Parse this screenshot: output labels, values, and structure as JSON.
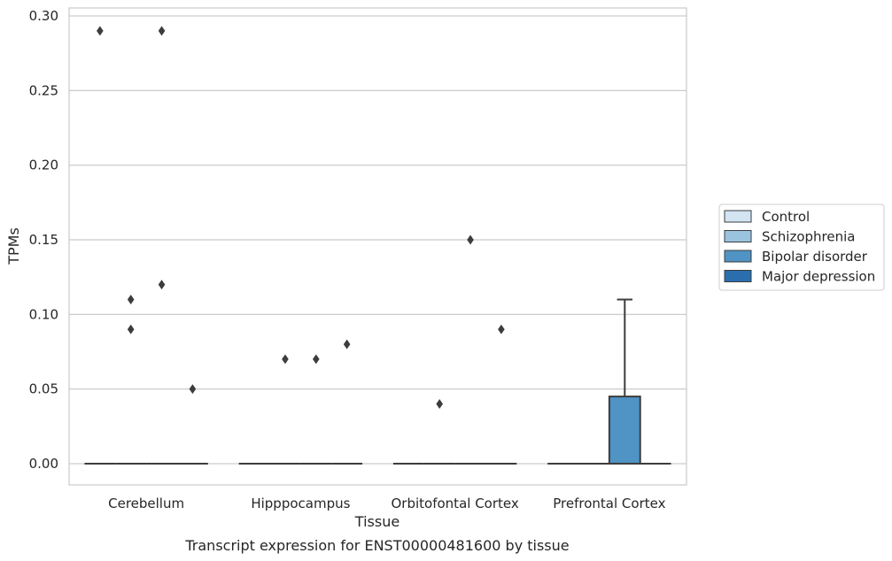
{
  "chart_data": {
    "type": "box",
    "title": "",
    "caption": "Transcript expression for ENST00000481600 by tissue",
    "xlabel": "Tissue",
    "ylabel": "TPMs",
    "ylim": [
      -0.014,
      0.305
    ],
    "yticks": [
      0.0,
      0.05,
      0.1,
      0.15,
      0.2,
      0.25,
      0.3
    ],
    "ytick_labels": [
      "0.00",
      "0.05",
      "0.10",
      "0.15",
      "0.20",
      "0.25",
      "0.30"
    ],
    "grid": true,
    "legend_position": "center-right",
    "categories": [
      "Cerebellum",
      "Hipppocampus",
      "Orbitofontal Cortex",
      "Prefrontal Cortex"
    ],
    "series": [
      {
        "name": "Control",
        "color": "#d3e4f3",
        "boxes": [
          {
            "q1": 0,
            "median": 0,
            "q3": 0,
            "whisker_low": 0,
            "whisker_high": 0,
            "outliers": [
              0.29
            ]
          },
          {
            "q1": 0,
            "median": 0,
            "q3": 0,
            "whisker_low": 0,
            "whisker_high": 0,
            "outliers": []
          },
          {
            "q1": 0,
            "median": 0,
            "q3": 0,
            "whisker_low": 0,
            "whisker_high": 0,
            "outliers": []
          },
          {
            "q1": 0,
            "median": 0,
            "q3": 0,
            "whisker_low": 0,
            "whisker_high": 0,
            "outliers": []
          }
        ]
      },
      {
        "name": "Schizophrenia",
        "color": "#9ac3df",
        "boxes": [
          {
            "q1": 0,
            "median": 0,
            "q3": 0,
            "whisker_low": 0,
            "whisker_high": 0,
            "outliers": [
              0.11,
              0.09
            ]
          },
          {
            "q1": 0,
            "median": 0,
            "q3": 0,
            "whisker_low": 0,
            "whisker_high": 0,
            "outliers": [
              0.07
            ]
          },
          {
            "q1": 0,
            "median": 0,
            "q3": 0,
            "whisker_low": 0,
            "whisker_high": 0,
            "outliers": [
              0.04
            ]
          },
          {
            "q1": 0,
            "median": 0,
            "q3": 0,
            "whisker_low": 0,
            "whisker_high": 0,
            "outliers": []
          }
        ]
      },
      {
        "name": "Bipolar disorder",
        "color": "#5093c5",
        "boxes": [
          {
            "q1": 0,
            "median": 0,
            "q3": 0,
            "whisker_low": 0,
            "whisker_high": 0,
            "outliers": [
              0.29,
              0.12
            ]
          },
          {
            "q1": 0,
            "median": 0,
            "q3": 0,
            "whisker_low": 0,
            "whisker_high": 0,
            "outliers": [
              0.07
            ]
          },
          {
            "q1": 0,
            "median": 0,
            "q3": 0,
            "whisker_low": 0,
            "whisker_high": 0,
            "outliers": [
              0.15
            ]
          },
          {
            "q1": 0,
            "median": 0,
            "q3": 0.045,
            "whisker_low": 0,
            "whisker_high": 0.11,
            "outliers": []
          }
        ]
      },
      {
        "name": "Major depression",
        "color": "#2a6eae",
        "boxes": [
          {
            "q1": 0,
            "median": 0,
            "q3": 0,
            "whisker_low": 0,
            "whisker_high": 0,
            "outliers": [
              0.05
            ]
          },
          {
            "q1": 0,
            "median": 0,
            "q3": 0,
            "whisker_low": 0,
            "whisker_high": 0,
            "outliers": [
              0.08
            ]
          },
          {
            "q1": 0,
            "median": 0,
            "q3": 0,
            "whisker_low": 0,
            "whisker_high": 0,
            "outliers": [
              0.09
            ]
          },
          {
            "q1": 0,
            "median": 0,
            "q3": 0,
            "whisker_low": 0,
            "whisker_high": 0,
            "outliers": []
          }
        ]
      }
    ]
  }
}
